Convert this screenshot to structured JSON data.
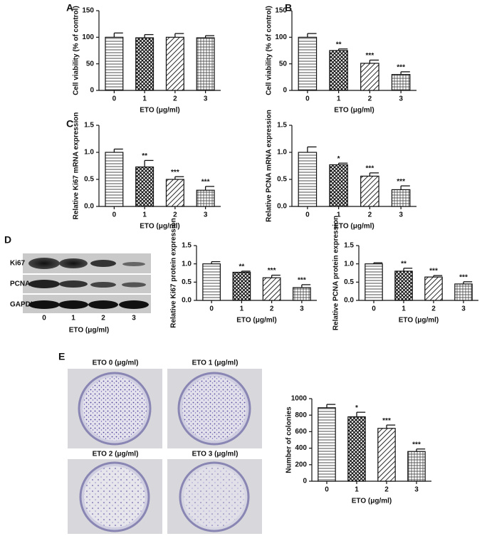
{
  "panels": [
    "A",
    "B",
    "C",
    "D",
    "E"
  ],
  "blot": {
    "rows": [
      "Ki67",
      "PCNA",
      "GAPDH"
    ],
    "lanes": [
      "0",
      "1",
      "2",
      "3"
    ],
    "xlabel": "ETO (μg/ml)"
  },
  "colony_images": [
    "ETO 0 (μg/ml)",
    "ETO 1 (μg/ml)",
    "ETO 2 (μg/ml)",
    "ETO 3 (μg/ml)"
  ],
  "chart_data": [
    {
      "type": "bar",
      "ylabel": "Cell viability (% of control)",
      "xlabel": "ETO (μg/ml)",
      "categories": [
        "0",
        "1",
        "2",
        "3"
      ],
      "values": [
        100,
        99,
        100,
        99
      ],
      "errors": [
        8,
        6,
        7,
        4
      ],
      "annotations": [
        null,
        null,
        null,
        null
      ],
      "ylim": [
        0,
        150
      ],
      "yticks": [
        0,
        50,
        100,
        150
      ]
    },
    {
      "type": "bar",
      "ylabel": "Cell viability (% of control)",
      "xlabel": "ETO (μg/ml)",
      "categories": [
        "0",
        "1",
        "2",
        "3"
      ],
      "values": [
        100,
        75,
        51,
        30
      ],
      "errors": [
        7,
        3,
        6,
        5
      ],
      "annotations": [
        null,
        "**",
        "***",
        "***"
      ],
      "ylim": [
        0,
        150
      ],
      "yticks": [
        0,
        50,
        100,
        150
      ]
    },
    {
      "type": "bar",
      "ylabel": "Relative Ki67 mRNA expression",
      "xlabel": "ETO (μg/ml)",
      "categories": [
        "0",
        "1",
        "2",
        "3"
      ],
      "values": [
        1.0,
        0.73,
        0.5,
        0.3
      ],
      "errors": [
        0.06,
        0.12,
        0.05,
        0.07
      ],
      "annotations": [
        null,
        "**",
        "***",
        "***"
      ],
      "ylim": [
        0,
        1.5
      ],
      "yticks": [
        {
          "value": 0,
          "label": "0.0"
        },
        0.5,
        {
          "value": 1,
          "label": "1.0"
        },
        1.5
      ]
    },
    {
      "type": "bar",
      "ylabel": "Relative PCNA mRNA expression",
      "xlabel": "ETO (μg/ml)",
      "categories": [
        "0",
        "1",
        "2",
        "3"
      ],
      "values": [
        1.0,
        0.77,
        0.56,
        0.31
      ],
      "errors": [
        0.1,
        0.03,
        0.06,
        0.07
      ],
      "annotations": [
        null,
        "*",
        "***",
        "***"
      ],
      "ylim": [
        0,
        1.5
      ],
      "yticks": [
        {
          "value": 0,
          "label": "0.0"
        },
        0.5,
        {
          "value": 1,
          "label": "1.0"
        },
        1.5
      ]
    },
    {
      "type": "bar",
      "ylabel": "Relative Ki67 protein expression",
      "xlabel": "ETO (μg/ml)",
      "categories": [
        "0",
        "1",
        "2",
        "3"
      ],
      "values": [
        1.0,
        0.77,
        0.62,
        0.35
      ],
      "errors": [
        0.06,
        0.03,
        0.07,
        0.08
      ],
      "annotations": [
        null,
        "**",
        "***",
        "***"
      ],
      "ylim": [
        0,
        1.5
      ],
      "yticks": [
        {
          "value": 0,
          "label": "0.0"
        },
        0.5,
        {
          "value": 1,
          "label": "1.0"
        },
        1.5
      ]
    },
    {
      "type": "bar",
      "ylabel": "Relative PCNA protein expression",
      "xlabel": "ETO (μg/ml)",
      "categories": [
        "0",
        "1",
        "2",
        "3"
      ],
      "values": [
        1.0,
        0.8,
        0.64,
        0.45
      ],
      "errors": [
        0.03,
        0.08,
        0.04,
        0.06
      ],
      "annotations": [
        null,
        "**",
        "***",
        "***"
      ],
      "ylim": [
        0,
        1.5
      ],
      "yticks": [
        {
          "value": 0,
          "label": "0.0"
        },
        0.5,
        {
          "value": 1,
          "label": "1.0"
        },
        1.5
      ]
    },
    {
      "type": "bar",
      "ylabel": "Number of colonies",
      "xlabel": "ETO (μg/ml)",
      "categories": [
        "0",
        "1",
        "2",
        "3"
      ],
      "values": [
        890,
        780,
        640,
        360
      ],
      "errors": [
        40,
        55,
        40,
        30
      ],
      "annotations": [
        null,
        "*",
        "***",
        "***"
      ],
      "ylim": [
        0,
        1000
      ],
      "yticks": [
        0,
        200,
        400,
        600,
        800,
        1000
      ]
    }
  ]
}
